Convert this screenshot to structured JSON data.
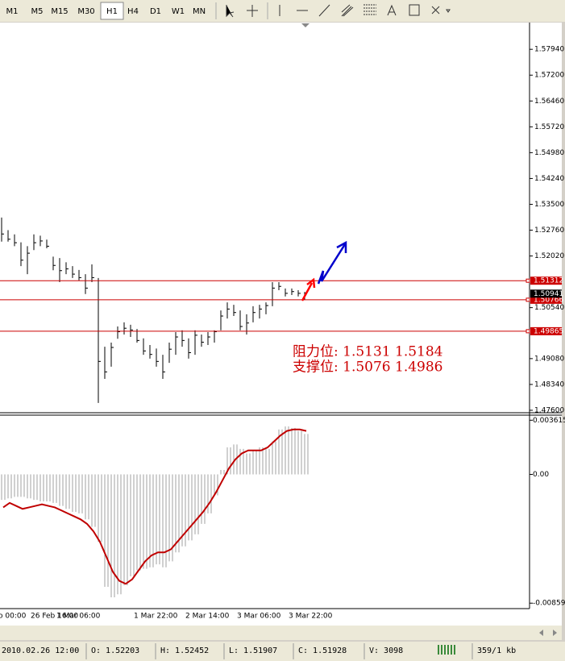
{
  "toolbar": {
    "timeframes": [
      "M1",
      "M5",
      "M15",
      "M30",
      "H1",
      "H4",
      "D1",
      "W1",
      "MN"
    ],
    "active": "H1"
  },
  "chart_data": [
    {
      "type": "ohlc",
      "color": "#000000",
      "categories": [
        "o 00:00",
        null,
        null,
        null,
        null,
        "26 Feb 16:00",
        null,
        null,
        null,
        "1 Mar 06:00",
        null,
        null,
        null,
        null,
        null,
        null,
        null,
        null,
        null,
        null,
        null,
        "1 Mar 22:00",
        null,
        null,
        null,
        null,
        null,
        null,
        null,
        "2 Mar 14:00",
        null,
        null,
        null,
        null,
        null,
        null,
        null,
        "3 Mar 06:00",
        null,
        null,
        null,
        null,
        null,
        null,
        null,
        "3 Mar 22:00",
        null,
        null
      ],
      "high": [
        1.5312,
        1.5276,
        1.5264,
        1.5241,
        1.523,
        1.5264,
        1.526,
        1.5249,
        1.52,
        1.5196,
        1.5184,
        1.5173,
        1.5162,
        1.515,
        1.5178,
        1.5139,
        1.4942,
        1.4954,
        1.5,
        1.5012,
        1.5005,
        1.4993,
        1.4966,
        1.4947,
        1.4937,
        1.4919,
        1.4954,
        1.4984,
        1.4989,
        1.4966,
        1.4989,
        1.4977,
        1.4984,
        1.4989,
        1.5046,
        1.5069,
        1.5062,
        1.5046,
        1.5035,
        1.5058,
        1.5062,
        1.5069,
        1.5127,
        1.5127,
        1.5109,
        1.5109,
        1.5104,
        1.5099
      ],
      "low": [
        1.5243,
        1.5243,
        1.523,
        1.5173,
        1.515,
        1.5219,
        1.523,
        1.5224,
        1.5161,
        1.5127,
        1.515,
        1.5139,
        1.5132,
        1.5093,
        1.5127,
        1.4781,
        1.485,
        1.4885,
        1.4965,
        1.4977,
        1.497,
        1.4954,
        1.4919,
        1.4908,
        1.4885,
        1.485,
        1.4896,
        1.4919,
        1.4942,
        1.4908,
        1.4919,
        1.4942,
        1.4947,
        1.4954,
        1.4989,
        1.5023,
        1.503,
        1.4989,
        1.4977,
        1.5012,
        1.5023,
        1.5035,
        1.5058,
        1.5104,
        1.5086,
        1.509,
        1.5086,
        1.5076
      ],
      "close": [
        1.5265,
        1.525,
        1.524,
        1.519,
        1.521,
        1.524,
        1.5245,
        1.523,
        1.5175,
        1.516,
        1.5165,
        1.515,
        1.514,
        1.511,
        1.514,
        1.49,
        1.487,
        1.494,
        1.4985,
        1.4995,
        1.499,
        1.496,
        1.493,
        1.492,
        1.49,
        1.487,
        1.4935,
        1.497,
        1.496,
        1.4925,
        1.4975,
        1.4955,
        1.497,
        1.4985,
        1.503,
        1.505,
        1.504,
        1.5,
        1.501,
        1.504,
        1.505,
        1.506,
        1.511,
        1.5115,
        1.5095,
        1.51,
        1.5095,
        1.5094
      ],
      "ylim": [
        1.4753,
        1.5866
      ],
      "yticks": [
        {
          "value": 1.5794,
          "label": "1.57940"
        },
        {
          "value": 1.572,
          "label": "1.57200"
        },
        {
          "value": 1.5646,
          "label": "1.56460"
        },
        {
          "value": 1.5572,
          "label": "1.55720"
        },
        {
          "value": 1.5498,
          "label": "1.54980"
        },
        {
          "value": 1.5424,
          "label": "1.54240"
        },
        {
          "value": 1.535,
          "label": "1.53500"
        },
        {
          "value": 1.5276,
          "label": "1.52760"
        },
        {
          "value": 1.5202,
          "label": "1.52020"
        },
        {
          "value": 1.5054,
          "label": "1.50540"
        },
        {
          "value": 1.4908,
          "label": "1.49080"
        },
        {
          "value": 1.4834,
          "label": "1.48340"
        },
        {
          "value": 1.476,
          "label": "1.47600"
        }
      ],
      "grid": false,
      "levels": [
        1.51312,
        1.50766,
        1.49865
      ],
      "level_color": "#cc0000",
      "last_price": 1.50941,
      "annotations": [
        "阻力位: 1.5131  1.5184",
        "支撑位: 1.5076  1.4986"
      ]
    },
    {
      "type": "macd",
      "color": "#a0a0a0",
      "signal_color": "#c00000",
      "values": [
        -0.0017,
        -0.0016,
        -0.0015,
        -0.0015,
        -0.0016,
        -0.0017,
        -0.0018,
        -0.0018,
        -0.0019,
        -0.0021,
        -0.0023,
        -0.0025,
        -0.0026,
        -0.003,
        -0.0035,
        -0.0045,
        -0.0075,
        -0.0082,
        -0.008,
        -0.0074,
        -0.0068,
        -0.0064,
        -0.0063,
        -0.0062,
        -0.006,
        -0.0062,
        -0.0058,
        -0.0052,
        -0.0048,
        -0.0044,
        -0.004,
        -0.0033,
        -0.0026,
        -0.0014,
        0.0003,
        0.0018,
        0.002,
        0.0017,
        0.0014,
        0.0016,
        0.0018,
        0.0017,
        0.0022,
        0.003,
        0.0032,
        0.0031,
        0.0029,
        0.0027
      ],
      "signal": [
        -0.0022,
        -0.0019,
        -0.0021,
        -0.0023,
        -0.0022,
        -0.0021,
        -0.002,
        -0.0021,
        -0.0022,
        -0.0024,
        -0.0026,
        -0.0028,
        -0.003,
        -0.0033,
        -0.0038,
        -0.0045,
        -0.0055,
        -0.0065,
        -0.0071,
        -0.0073,
        -0.007,
        -0.0064,
        -0.0058,
        -0.0054,
        -0.0052,
        -0.0052,
        -0.005,
        -0.0045,
        -0.004,
        -0.0035,
        -0.003,
        -0.0025,
        -0.0019,
        -0.0012,
        -0.0004,
        0.0004,
        0.001,
        0.0014,
        0.0016,
        0.0016,
        0.0016,
        0.0018,
        0.0022,
        0.0026,
        0.0029,
        0.003,
        0.003,
        0.0029
      ],
      "ylim": [
        -0.0089,
        0.0039
      ],
      "yticks": [
        0.003615,
        {
          "value": 0,
          "label": "0.00"
        },
        -0.00859
      ]
    }
  ],
  "status_bar": {
    "fields": [
      "2010.02.26 12:00",
      "O: 1.52203",
      "H: 1.52452",
      "L: 1.51907",
      "C: 1.51928",
      "V: 3098",
      "359/1 kb"
    ]
  }
}
